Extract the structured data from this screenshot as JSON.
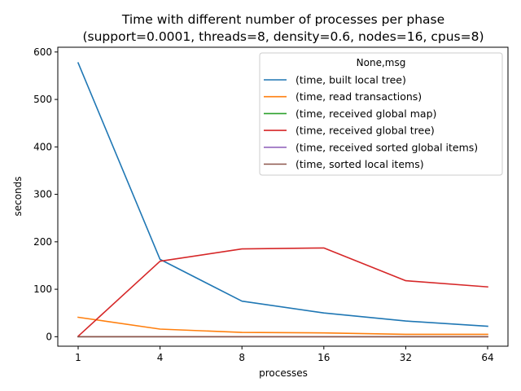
{
  "chart_data": {
    "type": "line",
    "title_line1": "Time with different number of processes per phase",
    "title_line2": "(support=0.0001, threads=8, density=0.6, nodes=16, cpus=8)",
    "xlabel": "processes",
    "ylabel": "seconds",
    "categories": [
      "1",
      "4",
      "8",
      "16",
      "32",
      "64"
    ],
    "ylim": [
      -20,
      610
    ],
    "yticks": [
      0,
      100,
      200,
      300,
      400,
      500,
      600
    ],
    "grid": false,
    "legend": {
      "title": "None,msg",
      "placement": "top-right"
    },
    "series": [
      {
        "name": "(time, built local tree)",
        "color": "#1f77b4",
        "values": [
          577,
          163,
          75,
          50,
          33,
          22
        ]
      },
      {
        "name": "(time, read transactions)",
        "color": "#ff7f0e",
        "values": [
          41,
          16,
          9,
          8,
          5,
          5
        ]
      },
      {
        "name": "(time, received global map)",
        "color": "#2ca02c",
        "values": [
          0,
          0,
          0,
          0,
          0,
          0
        ]
      },
      {
        "name": "(time, received global tree)",
        "color": "#d62728",
        "values": [
          1,
          159,
          185,
          187,
          118,
          105
        ]
      },
      {
        "name": "(time, received sorted global items)",
        "color": "#9467bd",
        "values": [
          0,
          0,
          0,
          0,
          0,
          0
        ]
      },
      {
        "name": "(time, sorted local items)",
        "color": "#8c564b",
        "values": [
          0,
          0,
          0,
          0,
          0,
          0
        ]
      }
    ]
  }
}
